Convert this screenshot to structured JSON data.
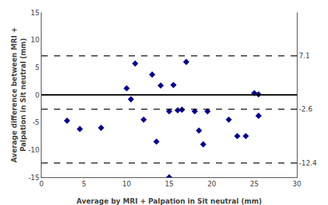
{
  "chart_data": {
    "type": "scatter",
    "xlabel": "Average by MRI + Palpation in Sit neutral (mm)",
    "ylabel": "Average difference between MRI +\nPalpation in Sit neutral (mm)",
    "series": [
      {
        "x": [
          3,
          4.5,
          7,
          10,
          10.5,
          11,
          12,
          13,
          13.5,
          14,
          15,
          15.5,
          16,
          16.5,
          17,
          18,
          18.5,
          19,
          19.5,
          22,
          23,
          24,
          25,
          25.5
        ],
        "y": [
          -4.7,
          -6.2,
          -6.0,
          1.2,
          -0.8,
          5.7,
          -4.5,
          3.7,
          -8.5,
          1.7,
          -3.0,
          1.8,
          -2.8,
          -2.7,
          6.0,
          -3.0,
          -6.5,
          -9.0,
          -3.0,
          -4.5,
          -7.5,
          -7.5,
          0.3,
          0.1
        ],
        "color": "#00008B",
        "marker": "diamond"
      },
      {
        "x": [
          15,
          25.5
        ],
        "y": [
          -15.0,
          -3.8
        ],
        "color": "#00008B",
        "marker": "diamond"
      }
    ],
    "lines": [
      {
        "y": 0,
        "color": "black",
        "line_style": "solid"
      },
      {
        "y": -2.6,
        "color": "black",
        "line_style": "dashed"
      },
      {
        "y": 7.1,
        "color": "black",
        "line_style": "dashed"
      },
      {
        "y": -12.4,
        "color": "black",
        "line_style": "dashed"
      }
    ],
    "xlim": [
      0,
      30
    ],
    "ylim": [
      -15,
      15
    ],
    "xticks": [
      0,
      5,
      10,
      15,
      20,
      25,
      30
    ],
    "yticks": [
      -15,
      -10,
      -5,
      0,
      5,
      10,
      15
    ],
    "y2lim": [
      -15,
      15
    ],
    "y2ticks": [
      7.1,
      -2.6,
      -12.4
    ],
    "grid": false
  }
}
